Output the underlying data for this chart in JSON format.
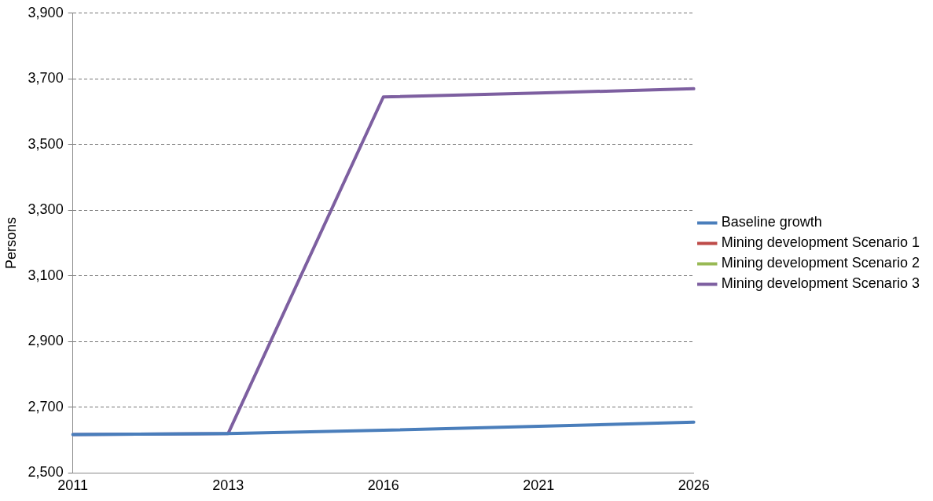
{
  "chart_data": {
    "type": "line",
    "ylabel": "Persons",
    "categories": [
      "2011",
      "2013",
      "2016",
      "2021",
      "2026"
    ],
    "series": [
      {
        "name": "Baseline growth",
        "color": "#4a7ebb",
        "values": [
          2617,
          2620,
          2630,
          2642,
          2655
        ]
      },
      {
        "name": "Mining development Scenario 1",
        "color": "#be4b48",
        "values": [
          null,
          null,
          null,
          null,
          null
        ]
      },
      {
        "name": "Mining development Scenario 2",
        "color": "#98b954",
        "values": [
          null,
          null,
          null,
          null,
          null
        ]
      },
      {
        "name": "Mining development Scenario 3",
        "color": "#7d5fa0",
        "values": [
          2617,
          2620,
          3645,
          3657,
          3670
        ]
      }
    ],
    "ylim": [
      2500,
      3900
    ],
    "yticks": [
      {
        "value": 2500,
        "label": "2,500"
      },
      {
        "value": 2700,
        "label": "2,700"
      },
      {
        "value": 2900,
        "label": "2,900"
      },
      {
        "value": 3100,
        "label": "3,100"
      },
      {
        "value": 3300,
        "label": "3,300"
      },
      {
        "value": 3500,
        "label": "3,500"
      },
      {
        "value": 3700,
        "label": "3,700"
      },
      {
        "value": 3900,
        "label": "3,900"
      }
    ],
    "grid": "y",
    "legend": "right",
    "marker": "none",
    "line_style": "solid"
  }
}
